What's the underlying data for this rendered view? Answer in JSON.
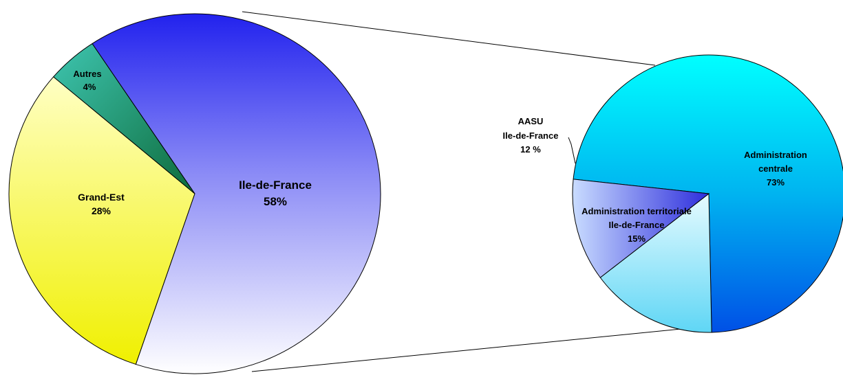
{
  "chart_data": [
    {
      "type": "pie",
      "slices": [
        {
          "label": "Ile-de-France",
          "value": 58,
          "value_text": "58%",
          "color": "#2f2ff0"
        },
        {
          "label": "Grand-Est",
          "value": 28,
          "value_text": "28%",
          "color": "#f2f23a"
        },
        {
          "label": "Autres",
          "value": 4,
          "value_text": "4%",
          "color": "#1e8f6a"
        }
      ]
    },
    {
      "type": "pie",
      "slices": [
        {
          "label": "Administration centrale",
          "label_lines": [
            "Administration",
            "centrale"
          ],
          "value": 73,
          "value_text": "73%",
          "color": "#00e6f5"
        },
        {
          "label": "Administration territoriale Ile-de-France",
          "label_lines": [
            "Administration territoriale",
            "Ile-de-France"
          ],
          "value": 15,
          "value_text": "15%",
          "color": "#bdeefc"
        },
        {
          "label": "AASU Ile-de-France",
          "label_lines": [
            "AASU",
            "Ile-de-France"
          ],
          "value": 12,
          "value_text": "12 %",
          "color": "#4b55e8"
        }
      ]
    }
  ]
}
